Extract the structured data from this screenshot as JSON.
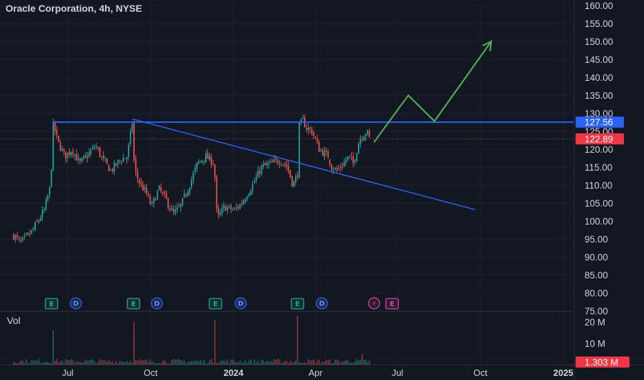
{
  "header": {
    "title": "Oracle Corporation, 4h, NYSE"
  },
  "volume_pane": {
    "label": "Vol"
  },
  "colors": {
    "background": "#131722",
    "up": "#26a69a",
    "down": "#ef5350",
    "resistance_line": "#2962ff",
    "projection": "#4caf50",
    "text": "#d1d4dc"
  },
  "chart_data": {
    "type": "candlestick",
    "title": "Oracle Corporation, 4h, NYSE",
    "price_axis": {
      "ticks": [
        "160.00",
        "155.00",
        "150.00",
        "145.00",
        "140.00",
        "135.00",
        "130.00",
        "125.00",
        "120.00",
        "115.00",
        "110.00",
        "105.00",
        "100.00",
        "95.00",
        "90.00",
        "85.00",
        "80.00",
        "75.00"
      ],
      "range": [
        75,
        161
      ]
    },
    "volume_axis": {
      "ticks": [
        "20 M",
        "10 M"
      ],
      "range": [
        0,
        25
      ]
    },
    "time_axis": {
      "ticks": [
        {
          "label": "Jul",
          "date": "2023-07-01"
        },
        {
          "label": "Oct",
          "date": "2023-10-01"
        },
        {
          "label": "2024",
          "date": "2024-01-01",
          "bold": true
        },
        {
          "label": "Apr",
          "date": "2024-04-01"
        },
        {
          "label": "Jul",
          "date": "2024-07-01"
        },
        {
          "label": "Oct",
          "date": "2024-10-01"
        },
        {
          "label": "2025",
          "date": "2025-01-01",
          "bold": true
        }
      ]
    },
    "price_path": [
      [
        "2023-05-02",
        96
      ],
      [
        "2023-05-10",
        94
      ],
      [
        "2023-05-22",
        97
      ],
      [
        "2023-06-05",
        103
      ],
      [
        "2023-06-09",
        107
      ],
      [
        "2023-06-12",
        110
      ],
      [
        "2023-06-13",
        116
      ],
      [
        "2023-06-14",
        124
      ],
      [
        "2023-06-15",
        127
      ],
      [
        "2023-06-20",
        122
      ],
      [
        "2023-06-28",
        118
      ],
      [
        "2023-07-06",
        120
      ],
      [
        "2023-07-14",
        116
      ],
      [
        "2023-07-22",
        118
      ],
      [
        "2023-08-01",
        121
      ],
      [
        "2023-08-09",
        117
      ],
      [
        "2023-08-18",
        114
      ],
      [
        "2023-08-28",
        117
      ],
      [
        "2023-09-05",
        118
      ],
      [
        "2023-09-08",
        123
      ],
      [
        "2023-09-11",
        128
      ],
      [
        "2023-09-12",
        121
      ],
      [
        "2023-09-13",
        114
      ],
      [
        "2023-09-15",
        113
      ],
      [
        "2023-09-20",
        110
      ],
      [
        "2023-09-26",
        108
      ],
      [
        "2023-10-02",
        104
      ],
      [
        "2023-10-10",
        109
      ],
      [
        "2023-10-18",
        106
      ],
      [
        "2023-10-26",
        102
      ],
      [
        "2023-11-03",
        104
      ],
      [
        "2023-11-13",
        110
      ],
      [
        "2023-11-22",
        116
      ],
      [
        "2023-12-01",
        118
      ],
      [
        "2023-12-11",
        116
      ],
      [
        "2023-12-12",
        104
      ],
      [
        "2023-12-15",
        101
      ],
      [
        "2023-12-22",
        104
      ],
      [
        "2024-01-02",
        103
      ],
      [
        "2024-01-10",
        105
      ],
      [
        "2024-01-22",
        110
      ],
      [
        "2024-02-01",
        115
      ],
      [
        "2024-02-12",
        116
      ],
      [
        "2024-02-22",
        117
      ],
      [
        "2024-03-01",
        115
      ],
      [
        "2024-03-07",
        110
      ],
      [
        "2024-03-12",
        113
      ],
      [
        "2024-03-13",
        126
      ],
      [
        "2024-03-18",
        128
      ],
      [
        "2024-03-22",
        126
      ],
      [
        "2024-03-28",
        125
      ],
      [
        "2024-04-05",
        120
      ],
      [
        "2024-04-15",
        118
      ],
      [
        "2024-04-19",
        115
      ],
      [
        "2024-04-25",
        114
      ],
      [
        "2024-05-02",
        116
      ],
      [
        "2024-05-08",
        118
      ],
      [
        "2024-05-13",
        116
      ],
      [
        "2024-05-20",
        123
      ],
      [
        "2024-05-28",
        125
      ],
      [
        "2024-05-31",
        122.89
      ]
    ],
    "volume_spikes": [
      {
        "date": "2023-06-14",
        "value": 16
      },
      {
        "date": "2023-09-12",
        "value": 20
      },
      {
        "date": "2023-12-12",
        "value": 21
      },
      {
        "date": "2024-03-12",
        "value": 23
      },
      {
        "date": "2024-05-22",
        "value": 5
      }
    ],
    "annotations": {
      "resistance": {
        "value": 127.56,
        "from": "2023-06-14",
        "to": "2025-01-31"
      },
      "trendline": {
        "from": {
          "date": "2023-09-11",
          "value": 128.4
        },
        "to": {
          "date": "2024-09-25",
          "value": 103.2
        }
      },
      "projection_path": [
        {
          "date": "2024-06-05",
          "value": 122
        },
        {
          "date": "2024-07-13",
          "value": 135
        },
        {
          "date": "2024-08-11",
          "value": 127.8
        },
        {
          "date": "2024-10-13",
          "value": 150
        }
      ]
    },
    "price_labels": [
      {
        "value": 127.56,
        "text": "127.56",
        "color": "#2962ff"
      },
      {
        "value": 122.89,
        "text": "122.89",
        "color": "#f23645"
      }
    ],
    "volume_label": {
      "value": 1.303,
      "text": "1.303 M",
      "color": "#f23645"
    },
    "events": [
      {
        "type": "earnings",
        "date": "2023-06-13",
        "label": "E"
      },
      {
        "type": "dividend",
        "date": "2023-07-10",
        "label": "D"
      },
      {
        "type": "earnings",
        "date": "2023-09-12",
        "label": "E"
      },
      {
        "type": "dividend",
        "date": "2023-10-08",
        "label": "D"
      },
      {
        "type": "earnings",
        "date": "2023-12-12",
        "label": "E"
      },
      {
        "type": "dividend",
        "date": "2024-01-09",
        "label": "D"
      },
      {
        "type": "earnings",
        "date": "2024-03-12",
        "label": "E"
      },
      {
        "type": "dividend",
        "date": "2024-04-08",
        "label": "D"
      },
      {
        "type": "split",
        "date": "2024-06-05",
        "label": "⚡"
      },
      {
        "type": "earnings",
        "date": "2024-06-25",
        "label": "E"
      }
    ]
  }
}
